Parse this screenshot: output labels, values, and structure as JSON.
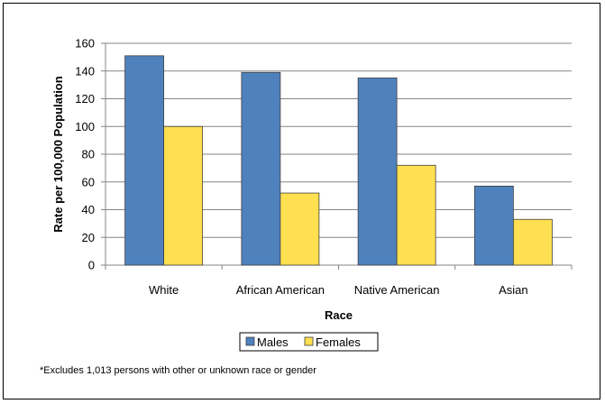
{
  "chart_data": {
    "type": "bar",
    "categories": [
      "White",
      "African American",
      "Native American",
      "Asian"
    ],
    "series": [
      {
        "name": "Males",
        "values": [
          151,
          139,
          135,
          57
        ],
        "color": "#4F81BD"
      },
      {
        "name": "Females",
        "values": [
          100,
          52,
          72,
          33
        ],
        "color": "#FFE050"
      }
    ],
    "xlabel": "Race",
    "ylabel": "Rate per 100,000 Population",
    "ylim": [
      0,
      160
    ],
    "yticks": [
      0,
      20,
      40,
      60,
      80,
      100,
      120,
      140,
      160
    ],
    "grid": true,
    "legend": "bottom-center"
  },
  "footnote": "*Excludes 1,013 persons with other or unknown race or gender"
}
